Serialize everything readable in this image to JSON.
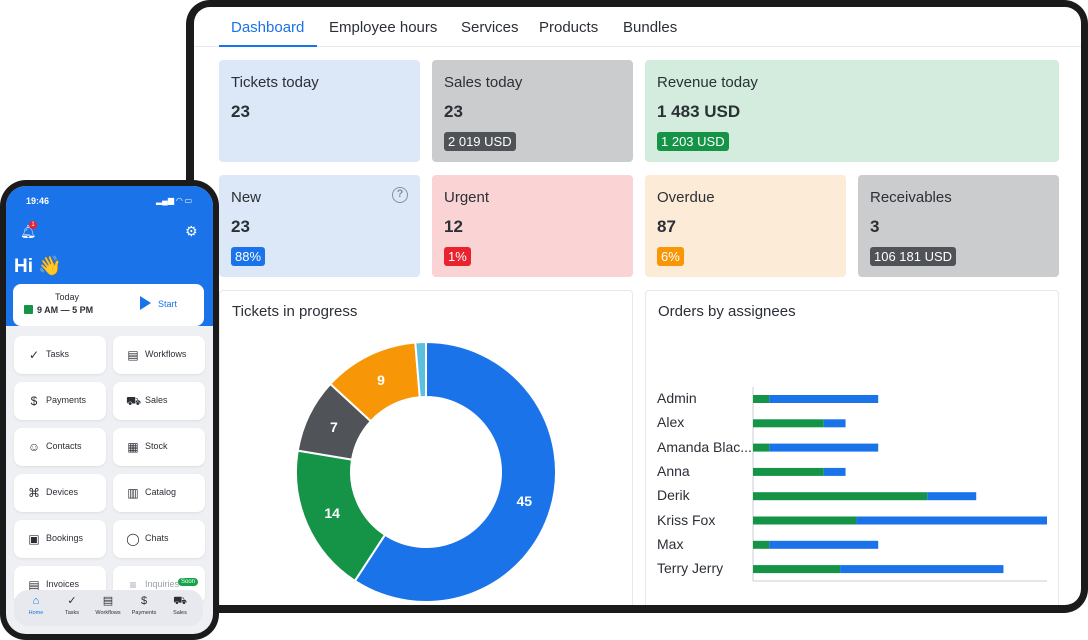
{
  "tablet": {
    "tabs": [
      "Dashboard",
      "Employee hours",
      "Services",
      "Products",
      "Bundles"
    ],
    "active_tab": "Dashboard",
    "cards": {
      "tickets_today": {
        "title": "Tickets today",
        "value": "23"
      },
      "sales_today": {
        "title": "Sales today",
        "value": "23",
        "badge": "2 019 USD"
      },
      "revenue_today": {
        "title": "Revenue today",
        "value": "1 483 USD",
        "badge": "1 203 USD"
      },
      "new": {
        "title": "New",
        "value": "23",
        "badge": "88%",
        "help": "?"
      },
      "urgent": {
        "title": "Urgent",
        "value": "12",
        "badge": "1%"
      },
      "overdue": {
        "title": "Overdue",
        "value": "87",
        "badge": "6%"
      },
      "receivables": {
        "title": "Receivables",
        "value": "3",
        "badge": "106 181 USD"
      }
    },
    "colors": {
      "blue_card": "#dce8f7",
      "grey_card": "#cbccce",
      "green_card": "#d3ecdd",
      "red_card": "#fad4d4",
      "orange_card": "#fcebd6",
      "accent": "#1a73e8",
      "green": "#159447",
      "red": "#e8232e",
      "orange": "#f79707",
      "dark_badge": "#4f5357"
    },
    "tickets_panel": {
      "title": "Tickets in progress"
    },
    "orders_panel": {
      "title": "Orders by assignees"
    }
  },
  "chart_data": [
    {
      "type": "pie",
      "title": "Tickets in progress",
      "labels": [
        "45",
        "14",
        "7",
        "9",
        ""
      ],
      "values": [
        45,
        14,
        7,
        9,
        1
      ],
      "colors": [
        "#1a73e8",
        "#159447",
        "#505458",
        "#f79707",
        "#5bc0de"
      ]
    },
    {
      "type": "bar",
      "title": "Orders by assignees",
      "orientation": "horizontal",
      "stacked": true,
      "categories": [
        "Admin",
        "Alex",
        "Amanda Blac...",
        "Anna",
        "Derik",
        "Kriss Fox",
        "Max",
        "Terry Jerry"
      ],
      "series": [
        {
          "values": [
            3,
            13,
            3,
            13,
            32,
            19,
            3,
            16
          ],
          "color": "#159447"
        },
        {
          "values": [
            20,
            4,
            20,
            4,
            9,
            35,
            20,
            30
          ],
          "color": "#1a73e8"
        }
      ],
      "xlim": [
        0,
        54
      ]
    }
  ],
  "phone": {
    "time": "19:46",
    "notification_count": "1",
    "greeting": "Hi 👋",
    "today": {
      "label": "Today",
      "hours": "9 AM — 5 PM",
      "start": "Start"
    },
    "tiles": [
      {
        "label": "Tasks",
        "icon": "✓"
      },
      {
        "label": "Workflows",
        "icon": "▤"
      },
      {
        "label": "Payments",
        "icon": "$"
      },
      {
        "label": "Sales",
        "icon": "⛟"
      },
      {
        "label": "Contacts",
        "icon": "☺"
      },
      {
        "label": "Stock",
        "icon": "▦"
      },
      {
        "label": "Devices",
        "icon": "⌘"
      },
      {
        "label": "Catalog",
        "icon": "▥"
      },
      {
        "label": "Bookings",
        "icon": "▣"
      },
      {
        "label": "Chats",
        "icon": "◯"
      },
      {
        "label": "Invoices",
        "icon": "▤"
      },
      {
        "label": "Inquiries",
        "icon": "≡"
      }
    ],
    "soon": "Soon",
    "nav": [
      {
        "label": "Home",
        "icon": "⌂"
      },
      {
        "label": "Tasks",
        "icon": "✓"
      },
      {
        "label": "Workflows",
        "icon": "▤"
      },
      {
        "label": "Payments",
        "icon": "$"
      },
      {
        "label": "Sales",
        "icon": "⛟"
      }
    ]
  }
}
